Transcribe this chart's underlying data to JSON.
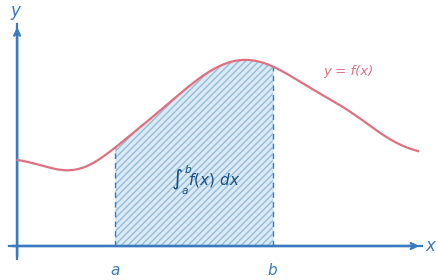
{
  "background_color": "#ffffff",
  "axis_color": "#3a7abf",
  "curve_color": "#e07080",
  "fill_color": "#b8d8ee",
  "fill_alpha": 0.5,
  "hatch_color": "#5090c0",
  "label_color": "#1a5080",
  "x_label": "x",
  "y_label": "y",
  "curve_label": "y = f(x)",
  "a_label": "a",
  "b_label": "b",
  "figsize": [
    4.38,
    2.8
  ],
  "dpi": 100,
  "a_x": 2.5,
  "b_x": 6.5,
  "xlim": [
    -0.4,
    10.5
  ],
  "ylim": [
    -0.5,
    5.2
  ]
}
